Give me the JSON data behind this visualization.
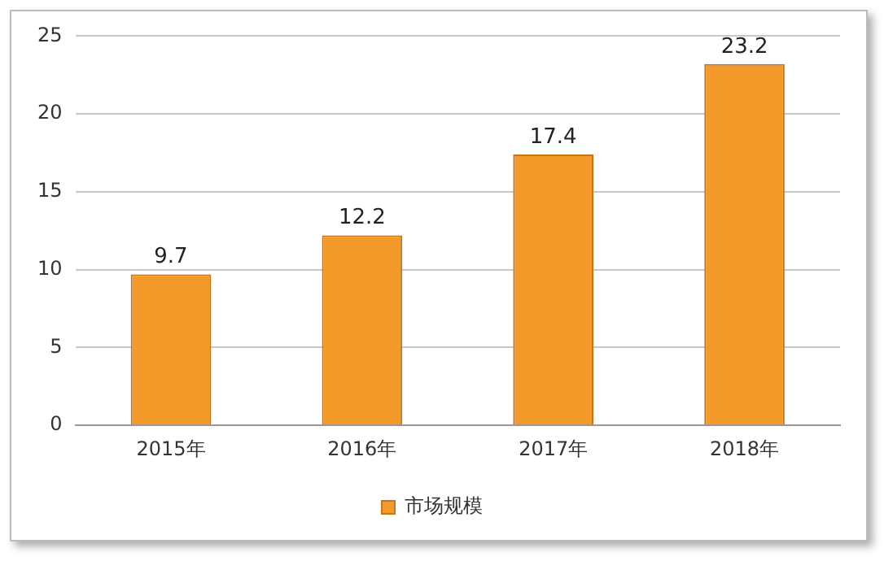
{
  "chart_data": {
    "type": "bar",
    "categories": [
      "2015年",
      "2016年",
      "2017年",
      "2018年"
    ],
    "series": [
      {
        "name": "市场规模",
        "color": "#f39a2b",
        "values": [
          9.7,
          12.2,
          17.4,
          23.2
        ]
      }
    ],
    "ylim": [
      0,
      25
    ],
    "yticks": [
      0,
      5,
      10,
      15,
      20,
      25
    ],
    "grid": "y",
    "legend": "bottom",
    "data_labels": true
  }
}
